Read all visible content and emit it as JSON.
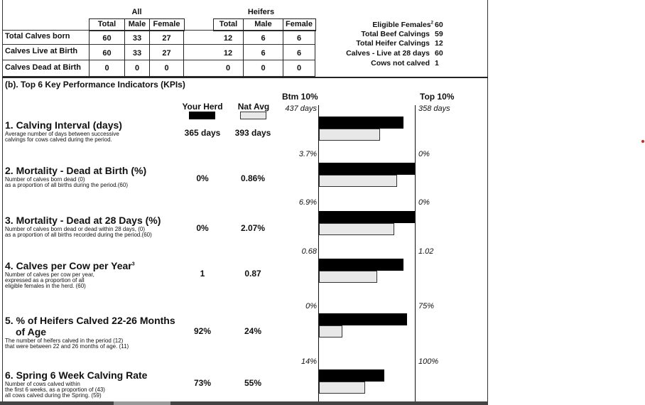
{
  "counts_table": {
    "group_all": "All",
    "group_heifers": "Heifers",
    "headers_all": [
      "Total",
      "Male",
      "Female"
    ],
    "headers_heifers": [
      "Total",
      "Male",
      "Female"
    ],
    "rows": [
      {
        "label": "Total Calves born",
        "all": [
          "60",
          "33",
          "27"
        ],
        "heifers": [
          "12",
          "6",
          "6"
        ]
      },
      {
        "label": "Calves Live at Birth",
        "all": [
          "60",
          "33",
          "27"
        ],
        "heifers": [
          "12",
          "6",
          "6"
        ]
      },
      {
        "label": "Calves Dead at Birth",
        "all": [
          "0",
          "0",
          "0"
        ],
        "heifers": [
          "0",
          "0",
          "0"
        ]
      }
    ]
  },
  "eligibility": {
    "rows": [
      {
        "label": "Eligible Females",
        "sup": "2",
        "value": "60"
      },
      {
        "label": "Total Beef Calvings",
        "value": "59"
      },
      {
        "label": "Total Heifer Calvings",
        "value": "12"
      },
      {
        "label": "Calves - Live at 28 days",
        "value": "60"
      },
      {
        "label": "Cows not calved",
        "value": "1"
      }
    ]
  },
  "kpi_section": {
    "title": "(b). Top 6 Key Performance Indicators (KPIs)",
    "col_your_herd": "Your Herd",
    "col_nat_avg": "Nat Avg",
    "col_btm": "Btm 10%",
    "col_top": "Top 10%"
  },
  "kpis": [
    {
      "title": "1. Calving Interval (days)",
      "desc": [
        "Average number of days between successive",
        "calvings for cows calved during the period."
      ],
      "your_herd": "365 days",
      "nat_avg": "393 days",
      "btm": "437 days",
      "top": "358 days",
      "your_frac": 0.88,
      "nat_frac": 0.62
    },
    {
      "title": "2. Mortality - Dead at Birth (%)",
      "desc": [
        "Number of calves born dead (0)",
        "as a proportion of all births during the period.(60)"
      ],
      "your_herd": "0%",
      "nat_avg": "0.86%",
      "btm": "3.7%",
      "top": "0%",
      "your_frac": 1.0,
      "nat_frac": 0.8
    },
    {
      "title": "3. Mortality - Dead at 28 Days (%)",
      "desc": [
        "Number of calves born dead or dead within 28 days, (0)",
        "as a proportion of all births recorded during the period.(60)"
      ],
      "your_herd": "0%",
      "nat_avg": "2.07%",
      "btm": "6.9%",
      "top": "0%",
      "your_frac": 1.0,
      "nat_frac": 0.77
    },
    {
      "title": "4. Calves per Cow per Year",
      "sup": "3",
      "desc": [
        "Number of calves per cow per year,",
        "expressed as a proportion of all",
        "eligible females in the herd. (60)"
      ],
      "your_herd": "1",
      "nat_avg": "0.87",
      "btm": "0.68",
      "top": "1.02",
      "your_frac": 0.88,
      "nat_frac": 0.59
    },
    {
      "title": "5. % of Heifers Calved 22-26 Months",
      "title2": "of Age",
      "desc": [
        "The number of heifers calved in the period  (12)",
        "that were between 22 and 26 months of age. (11)"
      ],
      "your_herd": "92%",
      "nat_avg": "24%",
      "btm": "0%",
      "top": "75%",
      "your_frac": 0.92,
      "nat_frac": 0.23
    },
    {
      "title": "6. Spring 6 Week Calving Rate",
      "desc": [
        "Number of cows calved within",
        "the first 6 weeks, as a proportion of (43)",
        "all cows calved during the Spring.   (59)"
      ],
      "your_herd": "73%",
      "nat_avg": "55%",
      "btm": "14%",
      "top": "100%",
      "your_frac": 0.68,
      "nat_frac": 0.47
    }
  ],
  "colors": {
    "your_herd": "#000000",
    "nat_avg": "#e8e8e8",
    "accent_dot": "#d22222"
  }
}
